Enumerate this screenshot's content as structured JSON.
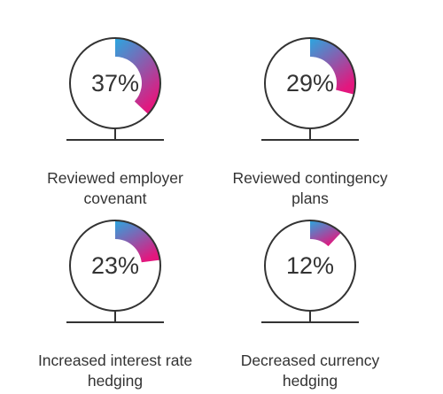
{
  "chart_data": {
    "type": "gauge",
    "items": [
      {
        "label": "Reviewed employer\ncovenant",
        "value": 37,
        "display": "37%"
      },
      {
        "label": "Reviewed contingency\nplans",
        "value": 29,
        "display": "29%"
      },
      {
        "label": "Increased interest rate\nhedging",
        "value": 23,
        "display": "23%"
      },
      {
        "label": "Decreased currency\nhedging",
        "value": 12,
        "display": "12%"
      }
    ],
    "max": 100,
    "colors": {
      "gradient_start": "#2aa7e0",
      "gradient_end": "#e3177e",
      "ring": "#333333",
      "text": "#333333"
    }
  }
}
